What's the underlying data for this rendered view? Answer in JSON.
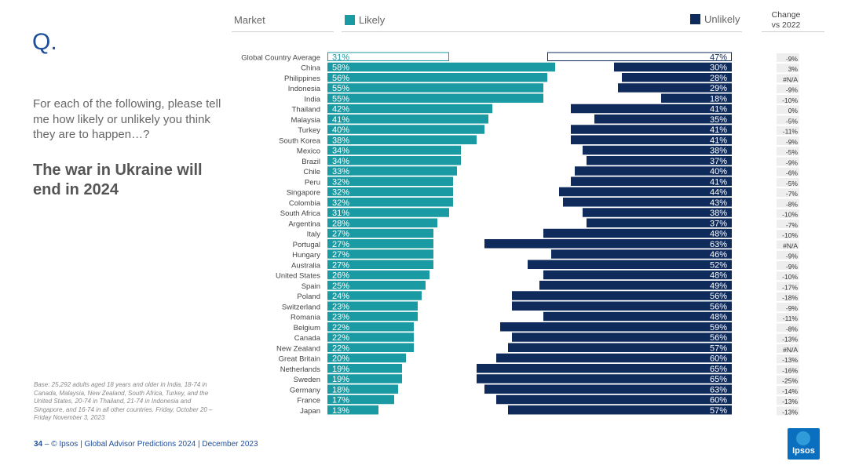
{
  "slide": {
    "q_label": "Q.",
    "question": "For each of the following, please tell me how likely or unlikely you think they are to happen…?",
    "headline": "The war in Ukraine will end in 2024",
    "base_note": "Base: 25,292 adults aged 18 years and older in India, 18-74 in Canada, Malaysia, New Zealand, South Africa, Turkey, and the United States, 20-74 in Thailand, 21-74 in Indonesia and Singapore, and 16-74 in all other countries. Friday, October 20 – Friday November 3, 2023",
    "footer_page": "34",
    "footer_sep": " – ",
    "footer_text": "© Ipsos | Global Advisor Predictions 2024 | December 2023",
    "logo_text": "Ipsos"
  },
  "headers": {
    "market": "Market",
    "likely": "Likely",
    "unlikely": "Unlikely",
    "change": "Change vs 2022"
  },
  "colors": {
    "likely": "#1a9ba3",
    "unlikely": "#0e2b5c",
    "avg_outline_likely": "#1a9ba3",
    "avg_outline_unlikely": "#0e2b5c",
    "change_bg": "#eeeeee"
  },
  "chart_data": {
    "type": "bar",
    "title": "The war in Ukraine will end in 2024",
    "series": [
      {
        "name": "Likely",
        "values": [
          31,
          58,
          56,
          55,
          55,
          42,
          41,
          40,
          38,
          34,
          34,
          33,
          32,
          32,
          32,
          31,
          28,
          27,
          27,
          27,
          27,
          26,
          25,
          24,
          23,
          23,
          22,
          22,
          22,
          20,
          19,
          19,
          18,
          17,
          13
        ]
      },
      {
        "name": "Unlikely",
        "values": [
          47,
          30,
          28,
          29,
          18,
          41,
          35,
          41,
          41,
          38,
          37,
          40,
          41,
          44,
          43,
          38,
          37,
          48,
          63,
          46,
          52,
          48,
          49,
          56,
          56,
          48,
          59,
          56,
          57,
          60,
          65,
          65,
          63,
          60,
          57
        ]
      }
    ],
    "categories": [
      "Global Country Average",
      "China",
      "Philippines",
      "Indonesia",
      "India",
      "Thailand",
      "Malaysia",
      "Turkey",
      "South Korea",
      "Mexico",
      "Brazil",
      "Chile",
      "Peru",
      "Singapore",
      "Colombia",
      "South Africa",
      "Argentina",
      "Italy",
      "Portugal",
      "Hungary",
      "Australia",
      "United States",
      "Spain",
      "Poland",
      "Switzerland",
      "Romania",
      "Belgium",
      "Canada",
      "New Zealand",
      "Great Britain",
      "Netherlands",
      "Sweden",
      "Germany",
      "France",
      "Japan"
    ],
    "likely_labels": [
      "31%",
      "58%",
      "56%",
      "55%",
      "55%",
      "42%",
      "41%",
      "40%",
      "38%",
      "34%",
      "34%",
      "33%",
      "32%",
      "32%",
      "32%",
      "31%",
      "28%",
      "27%",
      "27%",
      "27%",
      "27%",
      "26%",
      "25%",
      "24%",
      "23%",
      "23%",
      "22%",
      "22%",
      "22%",
      "20%",
      "19%",
      "19%",
      "18%",
      "17%",
      "13%"
    ],
    "unlikely_labels": [
      "47%",
      "30%",
      "28%",
      "29%",
      "18%",
      "41%",
      "35%",
      "41%",
      "41%",
      "38%",
      "37%",
      "40%",
      "41%",
      "44%",
      "43%",
      "38%",
      "37%",
      "48%",
      "63%",
      "46%",
      "52%",
      "48%",
      "49%",
      "56%",
      "56%",
      "48%",
      "59%",
      "56%",
      "57%",
      "60%",
      "65%",
      "65%",
      "63%",
      "60%",
      "57%"
    ],
    "change_vs_2022": [
      "-9%",
      "3%",
      "#N/A",
      "-9%",
      "-10%",
      "0%",
      "-5%",
      "-11%",
      "-9%",
      "-5%",
      "-9%",
      "-6%",
      "-5%",
      "-7%",
      "-8%",
      "-10%",
      "-7%",
      "-10%",
      "#N/A",
      "-9%",
      "-9%",
      "-10%",
      "-17%",
      "-18%",
      "-9%",
      "-11%",
      "-8%",
      "-13%",
      "#N/A",
      "-13%",
      "-16%",
      "-25%",
      "-14%",
      "-13%",
      "-13%"
    ],
    "xlabel": "",
    "ylabel": "Market",
    "xlim": [
      0,
      100
    ]
  }
}
